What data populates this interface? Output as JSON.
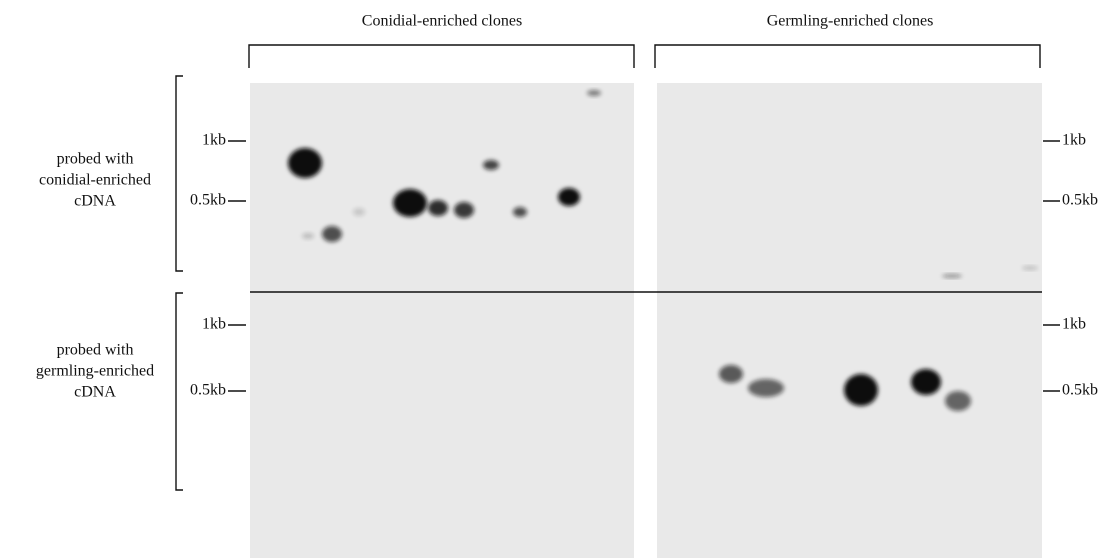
{
  "columns": [
    "Conidial-enriched clones",
    "Germling-enriched clones"
  ],
  "rows": [
    {
      "label": [
        "probed with",
        "conidial-enriched",
        "cDNA"
      ]
    },
    {
      "label": [
        "probed with",
        "germling-enriched",
        "cDNA"
      ]
    }
  ],
  "markers": [
    "1kb",
    "0.5kb"
  ]
}
